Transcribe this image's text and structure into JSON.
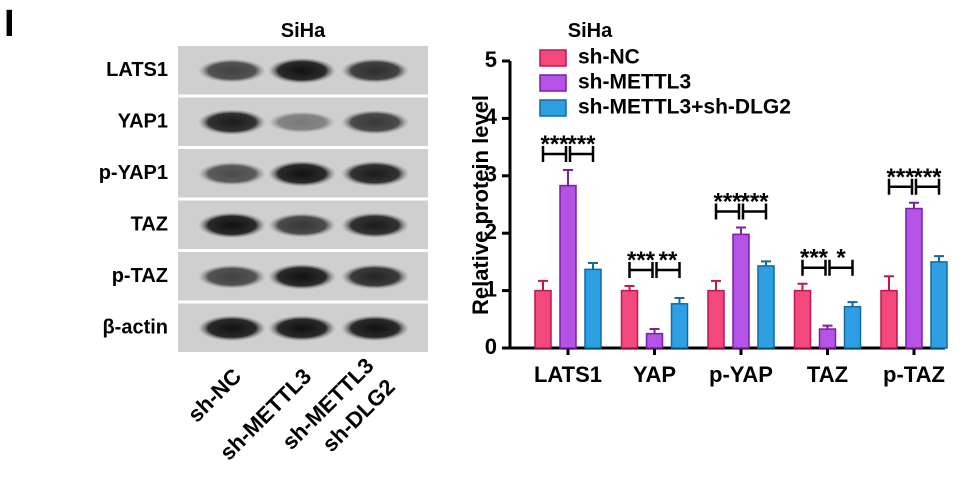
{
  "panel_label": "I",
  "blot": {
    "title": "SiHa",
    "rows": [
      "LATS1",
      "YAP1",
      "p-YAP1",
      "TAZ",
      "p-TAZ",
      "β-actin"
    ],
    "lanes": [
      "sh-NC",
      "sh-METTL3",
      [
        "sh-METTL3",
        "sh-DLG2"
      ]
    ]
  },
  "chart_data": {
    "type": "bar",
    "title": "SiHa",
    "y_label": "Relative protein level",
    "categories": [
      "LATS1",
      "YAP",
      "p-YAP",
      "TAZ",
      "p-TAZ"
    ],
    "series": [
      {
        "name": "sh-NC",
        "color": "#f2487c",
        "edge": "#c01650",
        "values": [
          1.0,
          1.0,
          1.0,
          1.0,
          1.0
        ],
        "errors": [
          0.17,
          0.08,
          0.17,
          0.12,
          0.25
        ]
      },
      {
        "name": "sh-METTL3",
        "color": "#b453e6",
        "edge": "#7a1fa8",
        "values": [
          2.83,
          0.25,
          1.98,
          0.33,
          2.43
        ],
        "errors": [
          0.27,
          0.08,
          0.12,
          0.06,
          0.1
        ]
      },
      {
        "name": "sh-METTL3+sh-DLG2",
        "color": "#2e9fe2",
        "edge": "#116aa3",
        "values": [
          1.37,
          0.77,
          1.43,
          0.72,
          1.5
        ],
        "errors": [
          0.11,
          0.1,
          0.08,
          0.08,
          0.1
        ]
      }
    ],
    "significance": [
      [
        "***",
        "***"
      ],
      [
        "***",
        "**"
      ],
      [
        "***",
        "***"
      ],
      [
        "***",
        "*"
      ],
      [
        "***",
        "***"
      ]
    ],
    "ylim": [
      0,
      5
    ],
    "yticks": [
      0,
      1,
      2,
      3,
      4,
      5
    ],
    "legend": "upper-left"
  }
}
